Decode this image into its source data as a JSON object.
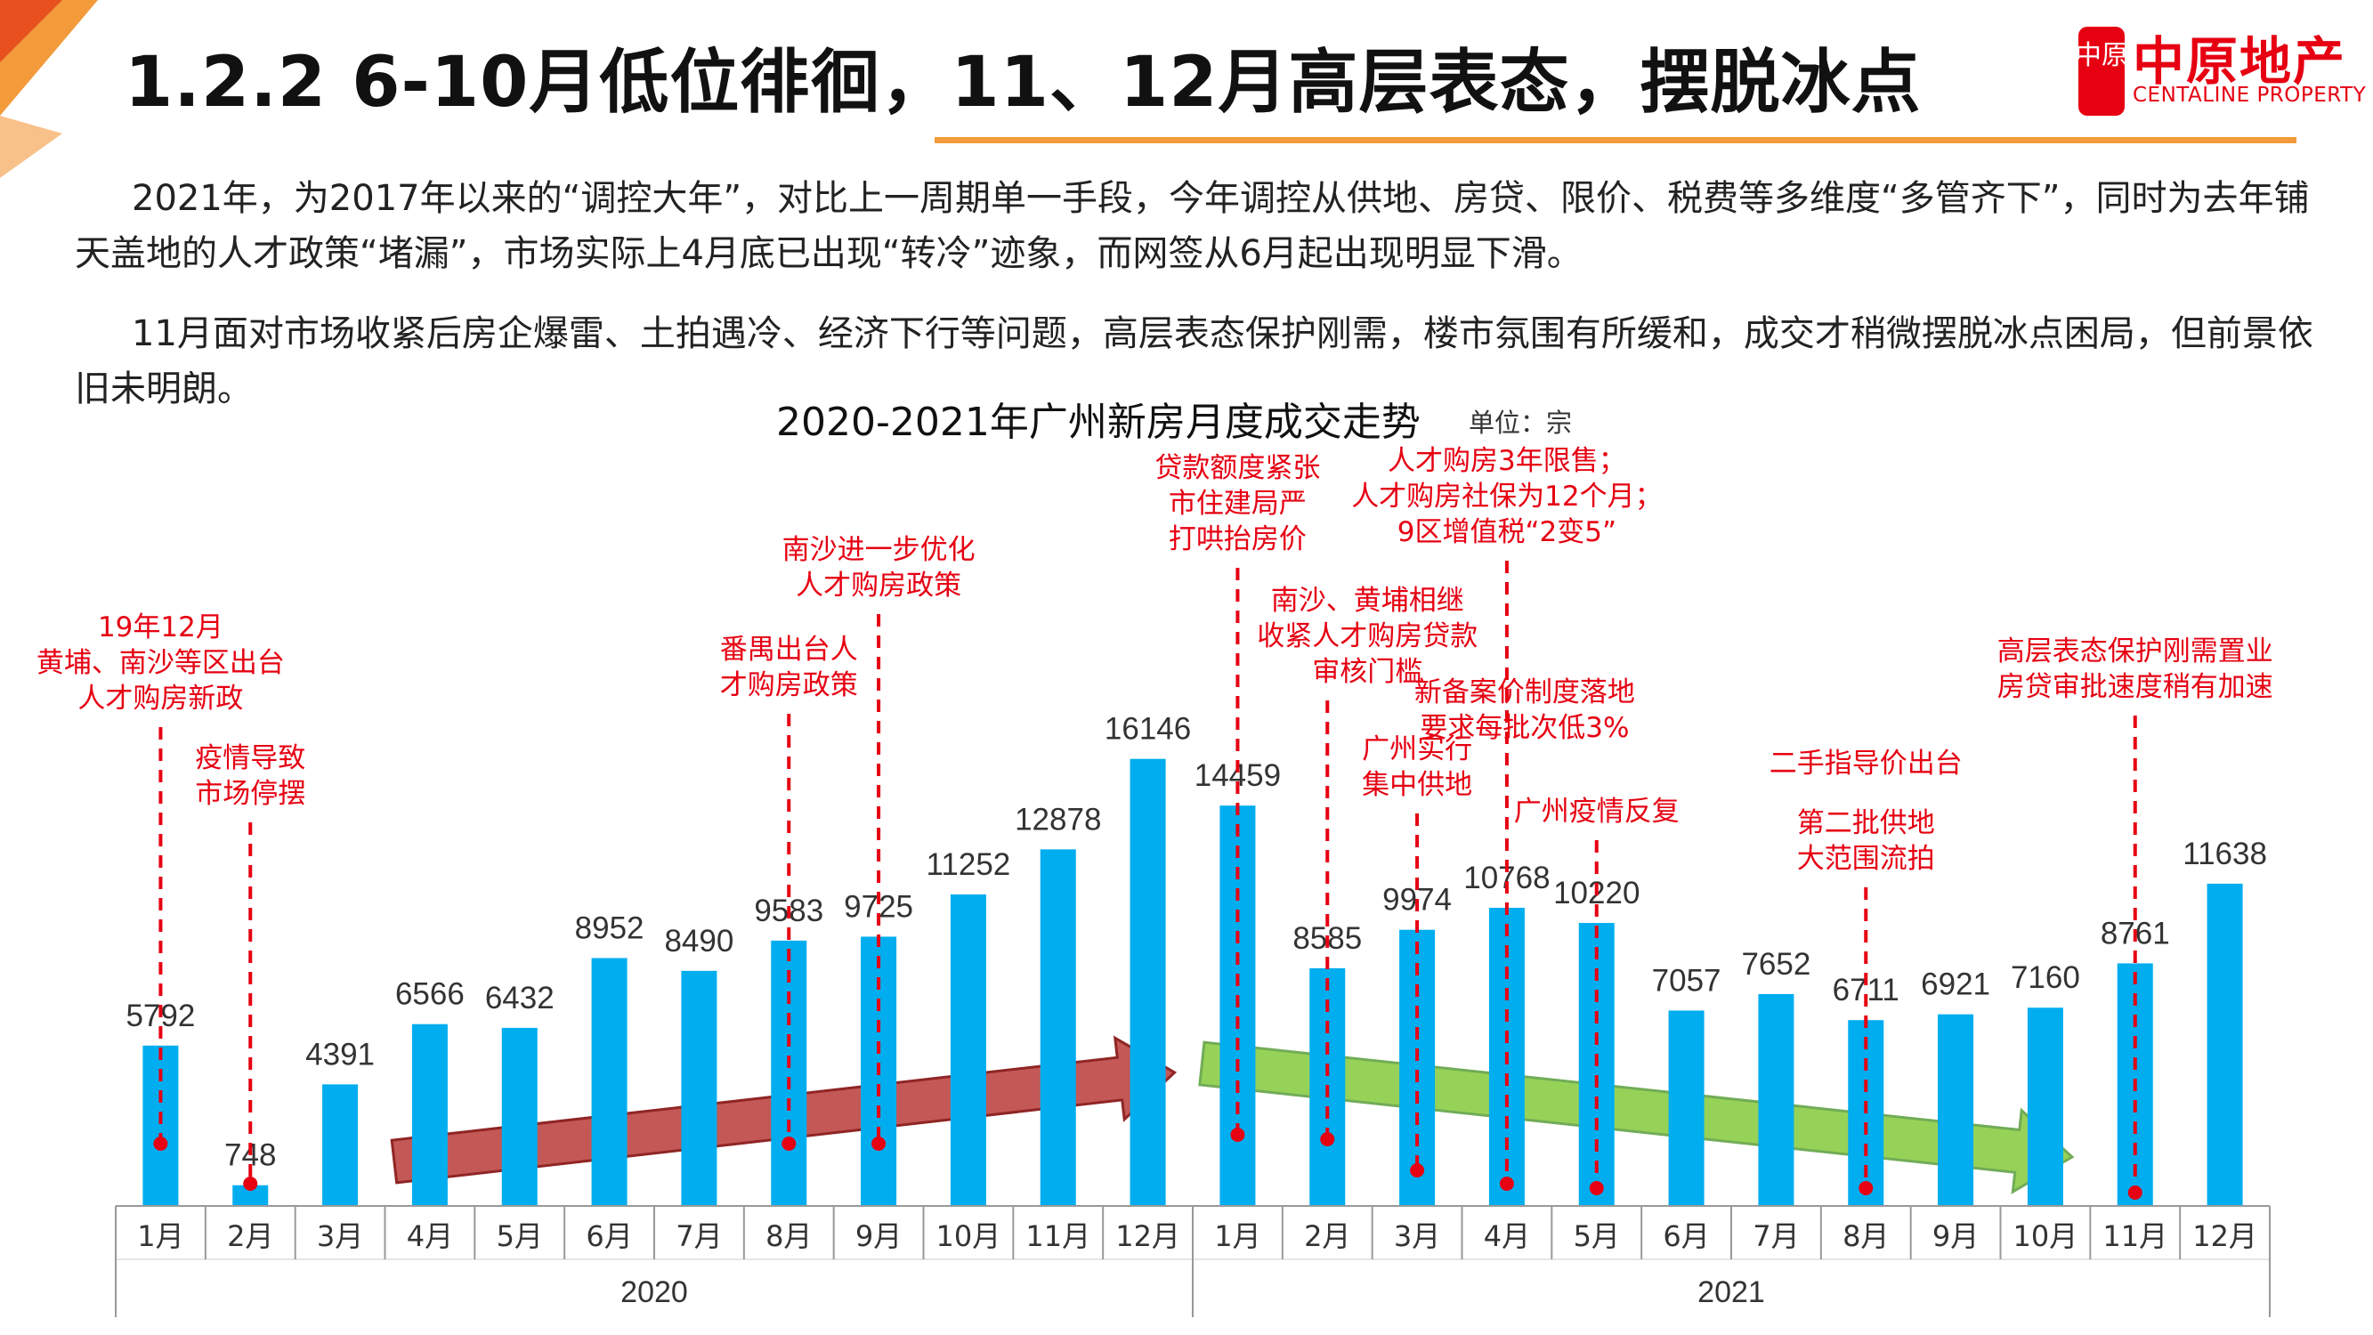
{
  "slide": {
    "title": "1.2.2 6-10月低位徘徊，11、12月高层表态，摆脱冰点",
    "brand": {
      "name": "中原地产",
      "sub": "CENTALINE PROPERTY",
      "mark": "中原"
    },
    "paragraphs": [
      "2021年，为2017年以来的“调控大年”，对比上一周期单一手段，今年调控从供地、房贷、限价、税费等多维度“多管齐下”，同时为去年铺天盖地的人才政策“堵漏”，市场实际上4月底已出现“转冷”迹象，而网签从6月起出现明显下滑。",
      "11月面对市场收紧后房企爆雷、土拍遇冷、经济下行等问题，高层表态保护刚需，楼市氛围有所缓和，成交才稍微摆脱冰点困局，但前景依旧未明朗。"
    ],
    "colors": {
      "accent_orange": "#f39a3a",
      "brand_red": "#e60012",
      "bar": "#00adef",
      "annotation": "#e60012",
      "arrow_up": "#c0504d",
      "arrow_down": "#92d050"
    }
  },
  "chart_data": {
    "type": "bar",
    "title": "2020-2021年广州新房月度成交走势",
    "unit": "单位：宗",
    "categories": [
      "1月",
      "2月",
      "3月",
      "4月",
      "5月",
      "6月",
      "7月",
      "8月",
      "9月",
      "10月",
      "11月",
      "12月",
      "1月",
      "2月",
      "3月",
      "4月",
      "5月",
      "6月",
      "7月",
      "8月",
      "9月",
      "10月",
      "11月",
      "12月"
    ],
    "years": [
      {
        "label": "2020",
        "span": 12
      },
      {
        "label": "2021",
        "span": 12
      }
    ],
    "values": [
      5792,
      748,
      4391,
      6566,
      6432,
      8952,
      8490,
      9583,
      9725,
      11252,
      12878,
      16146,
      14459,
      8585,
      9974,
      10768,
      10220,
      7057,
      7652,
      6711,
      6921,
      7160,
      8761,
      11638
    ],
    "ylim": [
      0,
      18000
    ],
    "annotations": [
      {
        "month_index": 0,
        "lines": [
          "19年12月",
          "黄埔、南沙等区出台",
          "人才购房新政"
        ]
      },
      {
        "month_index": 1,
        "lines": [
          "疫情导致",
          "市场停摆"
        ]
      },
      {
        "month_index": 7,
        "lines": [
          "番禺出台人",
          "才购房政策"
        ]
      },
      {
        "month_index": 8,
        "lines": [
          "南沙进一步优化",
          "人才购房政策"
        ]
      },
      {
        "month_index": 12,
        "lines": [
          "贷款额度紧张",
          "市住建局严",
          "打哄抬房价"
        ]
      },
      {
        "month_index": 13,
        "lines": [
          "南沙、黄埔相继",
          "收紧人才购房贷款",
          "审核门槛"
        ]
      },
      {
        "month_index": 14,
        "lines": [
          "广州实行",
          "集中供地"
        ]
      },
      {
        "month_index": 15,
        "lines": [
          "人才购房3年限售；",
          "人才购房社保为12个月；",
          "9区增值税“2变5”"
        ]
      },
      {
        "month_index": 15,
        "lines": [
          "新备案价制度落地",
          "要求每批次低3%"
        ]
      },
      {
        "month_index": 16,
        "lines": [
          "广州疫情反复"
        ]
      },
      {
        "month_index": 19,
        "lines": [
          "二手指导价出台"
        ]
      },
      {
        "month_index": 19,
        "lines": [
          "第二批供地",
          "大范围流拍"
        ]
      },
      {
        "month_index": 22,
        "lines": [
          "高层表态保护刚需置业",
          "房贷审批速度稍有加速"
        ]
      }
    ],
    "trends": [
      {
        "name": "上升",
        "from_index": 3,
        "to_index": 11,
        "color": "#c0504d"
      },
      {
        "name": "下降",
        "from_index": 12,
        "to_index": 21,
        "color": "#92d050"
      }
    ]
  }
}
